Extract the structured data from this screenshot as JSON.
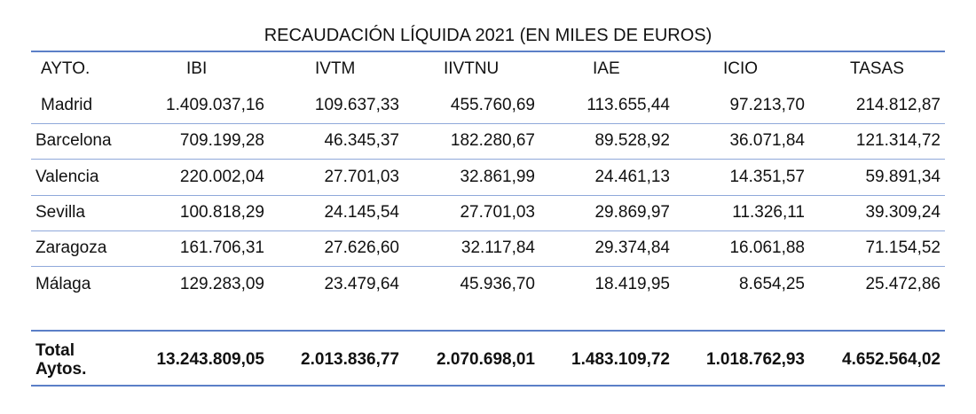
{
  "title": "RECAUDACIÓN LÍQUIDA 2021 (EN MILES DE EUROS)",
  "table": {
    "header": [
      "AYTO.",
      "IBI",
      "IVTM",
      "IIVTNU",
      "IAE",
      "ICIO",
      "TASAS"
    ],
    "rows": [
      [
        "Madrid",
        "1.409.037,16",
        "109.637,33",
        "455.760,69",
        "113.655,44",
        "97.213,70",
        "214.812,87"
      ],
      [
        "Barcelona",
        "709.199,28",
        "46.345,37",
        "182.280,67",
        "89.528,92",
        "36.071,84",
        "121.314,72"
      ],
      [
        "Valencia",
        "220.002,04",
        "27.701,03",
        "32.861,99",
        "24.461,13",
        "14.351,57",
        "59.891,34"
      ],
      [
        "Sevilla",
        "100.818,29",
        "24.145,54",
        "27.701,03",
        "29.869,97",
        "11.326,11",
        "39.309,24"
      ],
      [
        "Zaragoza",
        "161.706,31",
        "27.626,60",
        "32.117,84",
        "29.374,84",
        "16.061,88",
        "71.154,52"
      ],
      [
        "Málaga",
        "129.283,09",
        "23.479,64",
        "45.936,70",
        "18.419,95",
        "8.654,25",
        "25.472,86"
      ]
    ],
    "total": [
      "Total Aytos.",
      "13.243.809,05",
      "2.013.836,77",
      "2.070.698,01",
      "1.483.109,72",
      "1.018.762,93",
      "4.652.564,02"
    ]
  }
}
